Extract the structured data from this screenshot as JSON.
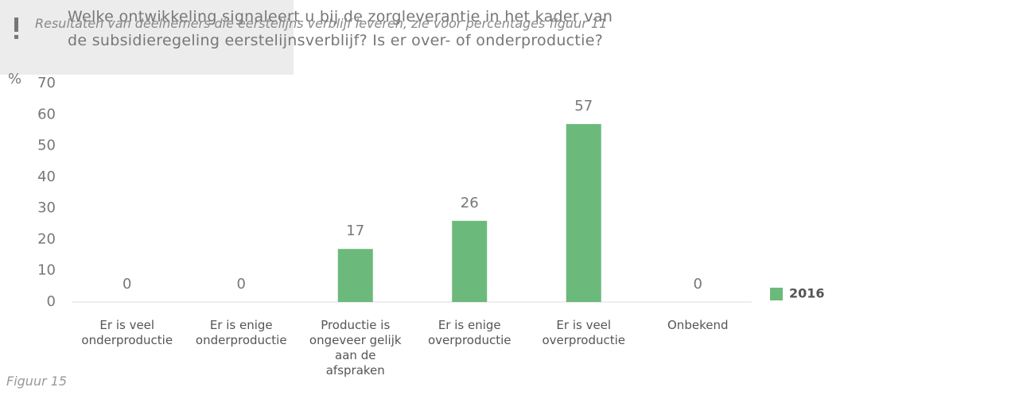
{
  "chart_data": {
    "type": "bar",
    "title": "Welke  ontwikkeling signaleert u bij de zorgleverantie in het kader van\nde subsidieregeling eerstelijnsverblijf? Is er over- of onderproductie?",
    "y_label": "%",
    "categories": [
      "Er is veel\nonderproductie",
      "Er is enige\nonderproductie",
      "Productie is\nongeveer gelijk\naan de\nafspraken",
      "Er is enige\noverproductie",
      "Er is veel\noverproductie",
      "Onbekend"
    ],
    "series": [
      {
        "name": "2016",
        "color": "#6cb97c",
        "values": [
          0,
          0,
          17,
          26,
          57,
          0
        ]
      }
    ],
    "ylim": [
      0,
      70
    ],
    "yticks": [
      0,
      10,
      20,
      30,
      40,
      50,
      60,
      70
    ],
    "legend": "right",
    "annotation": "Resultaten van deelnemers die\neerstelijns verblijf leveren,\nzie voor percentages figuur 11",
    "caption": "Figuur 15"
  }
}
